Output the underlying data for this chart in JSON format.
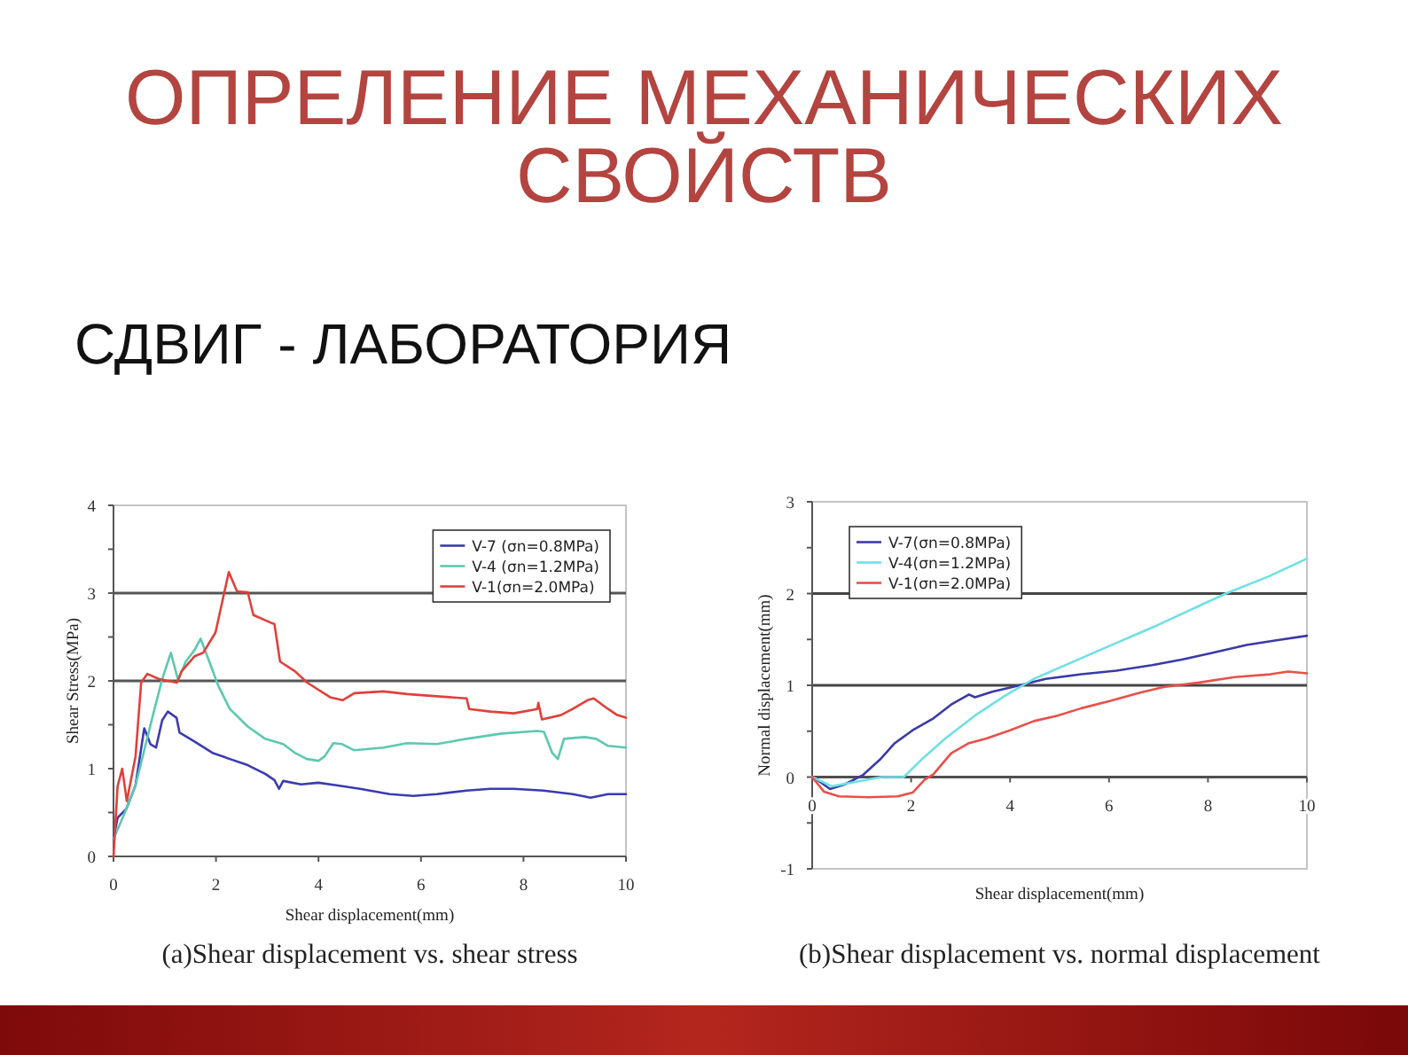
{
  "chart_data": [
    {
      "type": "other",
      "title": "ОПРЕЛЕНИЕ МЕХАНИЧЕСКИХ СВОЙСТВ",
      "subtitle": "СДВИГ - ЛАБОРАТОРИЯ"
    },
    {
      "type": "line",
      "xlabel": "Shear displacement(mm)",
      "ylabel": "Shear Stress(MPa)",
      "annotations": [
        "(a)Shear displacement vs. shear stress"
      ],
      "xlim": [
        0,
        10
      ],
      "xticks": [
        0,
        2,
        4,
        6,
        8,
        10
      ],
      "ylim": [
        0,
        4
      ],
      "yticks": [
        0,
        {
          "value": 0.5,
          "label": null
        },
        1,
        {
          "value": 1.5,
          "label": null
        },
        2,
        {
          "value": 2.5,
          "label": null
        },
        3,
        {
          "value": 3.5,
          "label": null
        },
        4
      ],
      "legend": "top right",
      "ref_lines": [
        {
          "axis": "y",
          "value": 2,
          "color": "#555555"
        },
        {
          "axis": "y",
          "value": 3,
          "color": "#555555"
        }
      ],
      "series": [
        {
          "name": "V-7 (σn=0.8MPa)",
          "color": "#3b3bb0",
          "x": [
            0,
            0.08,
            0.25,
            0.43,
            0.6,
            0.72,
            0.83,
            0.95,
            1.06,
            1.23,
            1.29,
            1.58,
            1.93,
            2.27,
            2.62,
            2.96,
            3.14,
            3.23,
            3.31,
            3.66,
            4.0,
            4.35,
            4.81,
            5.39,
            5.85,
            6.31,
            6.89,
            7.35,
            7.81,
            8.39,
            8.96,
            9.31,
            9.65,
            10
          ],
          "values": [
            0.2,
            0.44,
            0.54,
            0.81,
            1.46,
            1.28,
            1.24,
            1.55,
            1.65,
            1.58,
            1.41,
            1.31,
            1.18,
            1.11,
            1.04,
            0.94,
            0.87,
            0.77,
            0.86,
            0.82,
            0.84,
            0.81,
            0.77,
            0.71,
            0.69,
            0.71,
            0.75,
            0.77,
            0.77,
            0.75,
            0.71,
            0.67,
            0.71,
            0.71
          ]
        },
        {
          "name": "V-4 (σn=1.2MPa)",
          "color": "#5cc8b0",
          "x": [
            0,
            0.2,
            0.43,
            0.6,
            0.77,
            0.95,
            1.12,
            1.26,
            1.41,
            1.58,
            1.7,
            1.87,
            2.04,
            2.27,
            2.62,
            2.96,
            3.31,
            3.54,
            3.77,
            4.0,
            4.12,
            4.29,
            4.46,
            4.69,
            5.27,
            5.73,
            6.31,
            6.89,
            7.58,
            8.27,
            8.4,
            8.56,
            8.67,
            8.79,
            9.19,
            9.42,
            9.65,
            10
          ],
          "values": [
            0.2,
            0.47,
            0.81,
            1.21,
            1.61,
            2.02,
            2.32,
            2.01,
            2.22,
            2.35,
            2.48,
            2.22,
            1.95,
            1.68,
            1.48,
            1.34,
            1.28,
            1.18,
            1.11,
            1.09,
            1.14,
            1.29,
            1.28,
            1.21,
            1.24,
            1.29,
            1.28,
            1.34,
            1.4,
            1.43,
            1.42,
            1.18,
            1.11,
            1.34,
            1.36,
            1.34,
            1.26,
            1.24
          ]
        },
        {
          "name": "V-1(σn=2.0MPa)",
          "color": "#e0403a",
          "x": [
            0,
            0.08,
            0.17,
            0.26,
            0.43,
            0.54,
            0.66,
            0.89,
            1.24,
            1.33,
            1.58,
            1.75,
            1.99,
            2.25,
            2.41,
            2.62,
            2.73,
            3.08,
            3.14,
            3.25,
            3.54,
            3.78,
            4.24,
            4.47,
            4.7,
            5.27,
            5.73,
            6.19,
            6.89,
            6.94,
            7.35,
            7.81,
            8.27,
            8.29,
            8.36,
            8.73,
            8.96,
            9.25,
            9.37,
            9.65,
            9.83,
            10
          ],
          "values": [
            0,
            0.8,
            1.0,
            0.63,
            1.14,
            1.98,
            2.08,
            2.02,
            1.98,
            2.11,
            2.28,
            2.32,
            2.55,
            3.24,
            3.02,
            3.01,
            2.75,
            2.66,
            2.65,
            2.22,
            2.11,
            1.98,
            1.81,
            1.78,
            1.86,
            1.88,
            1.85,
            1.83,
            1.8,
            1.68,
            1.65,
            1.63,
            1.68,
            1.75,
            1.56,
            1.61,
            1.68,
            1.78,
            1.8,
            1.68,
            1.61,
            1.58
          ]
        }
      ]
    },
    {
      "type": "line",
      "xlabel": "Shear displacement(mm)",
      "ylabel": "Normal displacement(mm)",
      "annotations": [
        "(b)Shear displacement vs. normal displacement"
      ],
      "xlim": [
        0,
        10
      ],
      "xticks": [
        0,
        2,
        4,
        6,
        8,
        10
      ],
      "ylim": [
        -1,
        3
      ],
      "yticks": [
        -1,
        {
          "value": -0.5,
          "label": null
        },
        0,
        {
          "value": 0.5,
          "label": null
        },
        1,
        {
          "value": 1.5,
          "label": null
        },
        2,
        {
          "value": 2.5,
          "label": null
        },
        3
      ],
      "grid": "y",
      "legend": "top left",
      "series": [
        {
          "name": "V-7(σn=0.8MPa)",
          "color": "#3a3aa8",
          "x": [
            0,
            0.18,
            0.36,
            0.66,
            1.02,
            1.37,
            1.67,
            2.03,
            2.45,
            2.81,
            3.17,
            3.29,
            3.64,
            4.12,
            4.72,
            5.44,
            6.15,
            6.87,
            7.47,
            8.06,
            8.78,
            9.38,
            10
          ],
          "values": [
            0,
            -0.06,
            -0.13,
            -0.08,
            0.02,
            0.19,
            0.37,
            0.51,
            0.64,
            0.79,
            0.9,
            0.87,
            0.93,
            0.99,
            1.07,
            1.12,
            1.16,
            1.22,
            1.28,
            1.35,
            1.44,
            1.49,
            1.54
          ]
        },
        {
          "name": "V-4(σn=1.2MPa)",
          "color": "#6ee0e6",
          "x": [
            0,
            0.4,
            0.9,
            1.4,
            1.85,
            2.21,
            2.69,
            3.29,
            3.88,
            4.48,
            5.8,
            7.0,
            8.36,
            9.2,
            10
          ],
          "values": [
            0,
            -0.1,
            -0.05,
            0,
            0,
            0.19,
            0.42,
            0.67,
            0.88,
            1.07,
            1.38,
            1.66,
            2.0,
            2.18,
            2.38
          ]
        },
        {
          "name": "V-1(σn=2.0MPa)",
          "color": "#e8504a",
          "x": [
            0,
            0.24,
            0.54,
            1.14,
            1.73,
            2.03,
            2.27,
            2.45,
            2.81,
            3.17,
            3.52,
            4.0,
            4.48,
            4.96,
            5.44,
            6.03,
            6.63,
            7.1,
            7.82,
            8.54,
            9.26,
            9.62,
            10
          ],
          "values": [
            0,
            -0.16,
            -0.21,
            -0.22,
            -0.21,
            -0.17,
            -0.03,
            0.03,
            0.26,
            0.37,
            0.42,
            0.51,
            0.61,
            0.67,
            0.75,
            0.83,
            0.92,
            0.98,
            1.03,
            1.09,
            1.12,
            1.15,
            1.13
          ]
        }
      ]
    }
  ]
}
